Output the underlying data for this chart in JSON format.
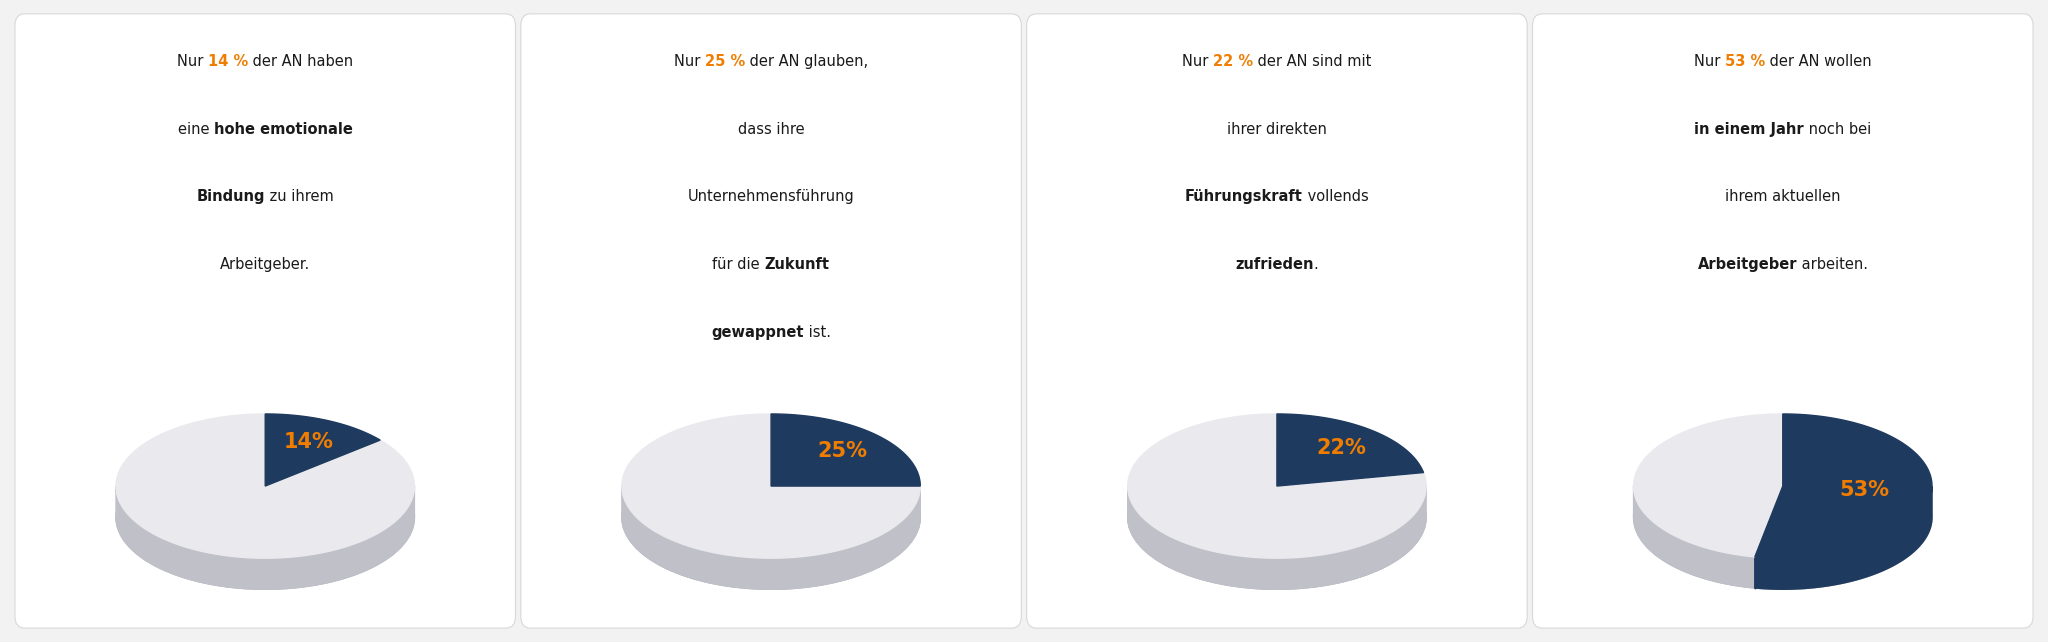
{
  "color_blue": "#1e3a5f",
  "color_light": "#eaeaee",
  "color_orange": "#f07d00",
  "color_gray_side": "#c0c0c8",
  "color_gray_bottom": "#b8b8c0",
  "background": "#f2f2f2",
  "card_background": "#ffffff",
  "text_color": "#1a1a1a",
  "charts": [
    {
      "value": 14,
      "lines": [
        [
          [
            "normal",
            "Nur "
          ],
          [
            "bold_orange",
            "14 %"
          ],
          [
            "normal",
            " der AN haben"
          ]
        ],
        [
          [
            "normal",
            "eine "
          ],
          [
            "bold",
            "hohe emotionale"
          ]
        ],
        [
          [
            "bold",
            "Bindung"
          ],
          [
            "normal",
            " zu ihrem"
          ]
        ],
        [
          [
            "normal",
            "Arbeitgeber."
          ]
        ]
      ]
    },
    {
      "value": 25,
      "lines": [
        [
          [
            "normal",
            "Nur "
          ],
          [
            "bold_orange",
            "25 %"
          ],
          [
            "normal",
            " der AN glauben,"
          ]
        ],
        [
          [
            "normal",
            "dass ihre"
          ]
        ],
        [
          [
            "normal",
            "Unternehmensführung"
          ]
        ],
        [
          [
            "normal",
            "für die "
          ],
          [
            "bold",
            "Zukunft"
          ]
        ],
        [
          [
            "bold",
            "gewappnet"
          ],
          [
            "normal",
            " ist."
          ]
        ]
      ]
    },
    {
      "value": 22,
      "lines": [
        [
          [
            "normal",
            "Nur "
          ],
          [
            "bold_orange",
            "22 %"
          ],
          [
            "normal",
            " der AN sind mit"
          ]
        ],
        [
          [
            "normal",
            "ihrer direkten"
          ]
        ],
        [
          [
            "bold",
            "Führungskraft"
          ],
          [
            "normal",
            " vollends"
          ]
        ],
        [
          [
            "bold",
            "zufrieden"
          ],
          [
            "normal",
            "."
          ]
        ]
      ]
    },
    {
      "value": 53,
      "lines": [
        [
          [
            "normal",
            "Nur "
          ],
          [
            "bold_orange",
            "53 %"
          ],
          [
            "normal",
            " der AN wollen"
          ]
        ],
        [
          [
            "bold",
            "in einem Jahr"
          ],
          [
            "normal",
            " noch bei"
          ]
        ],
        [
          [
            "normal",
            "ihrem aktuellen"
          ]
        ],
        [
          [
            "bold",
            "Arbeitgeber"
          ],
          [
            "normal",
            " arbeiten."
          ]
        ]
      ]
    }
  ]
}
